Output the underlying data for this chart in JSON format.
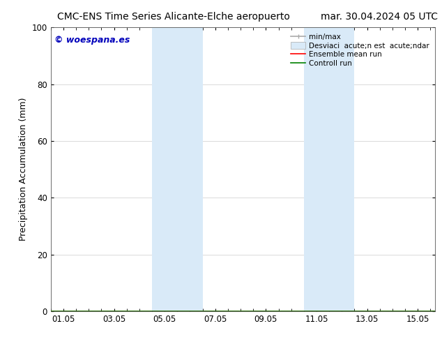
{
  "title_left": "CMC-ENS Time Series Alicante-Elche aeropuerto",
  "title_right": "mar. 30.04.2024 05 UTC",
  "ylabel": "Precipitation Accumulation (mm)",
  "ylim": [
    0,
    100
  ],
  "yticks": [
    0,
    20,
    40,
    60,
    80,
    100
  ],
  "xtick_labels": [
    "01.05",
    "03.05",
    "05.05",
    "07.05",
    "09.05",
    "11.05",
    "13.05",
    "15.05"
  ],
  "xtick_positions": [
    0,
    2,
    4,
    6,
    8,
    10,
    12,
    14
  ],
  "xlim": [
    -0.5,
    14.7
  ],
  "shaded_regions": [
    {
      "xstart": 3.5,
      "xend": 5.5,
      "color": "#d9eaf8"
    },
    {
      "xstart": 9.5,
      "xend": 11.5,
      "color": "#d9eaf8"
    }
  ],
  "watermark_text": "© woespana.es",
  "watermark_color": "#0000bb",
  "legend_minmax_color": "#aaaaaa",
  "legend_band_color": "#d9eaf8",
  "legend_band_edge": "#aaaaaa",
  "legend_ens_color": "#ff0000",
  "legend_ctrl_color": "#008000",
  "bg_color": "#ffffff",
  "plot_bg_color": "#ffffff",
  "grid_color": "#cccccc",
  "title_fontsize": 10,
  "label_fontsize": 9,
  "tick_fontsize": 8.5,
  "legend_fontsize": 7.5
}
